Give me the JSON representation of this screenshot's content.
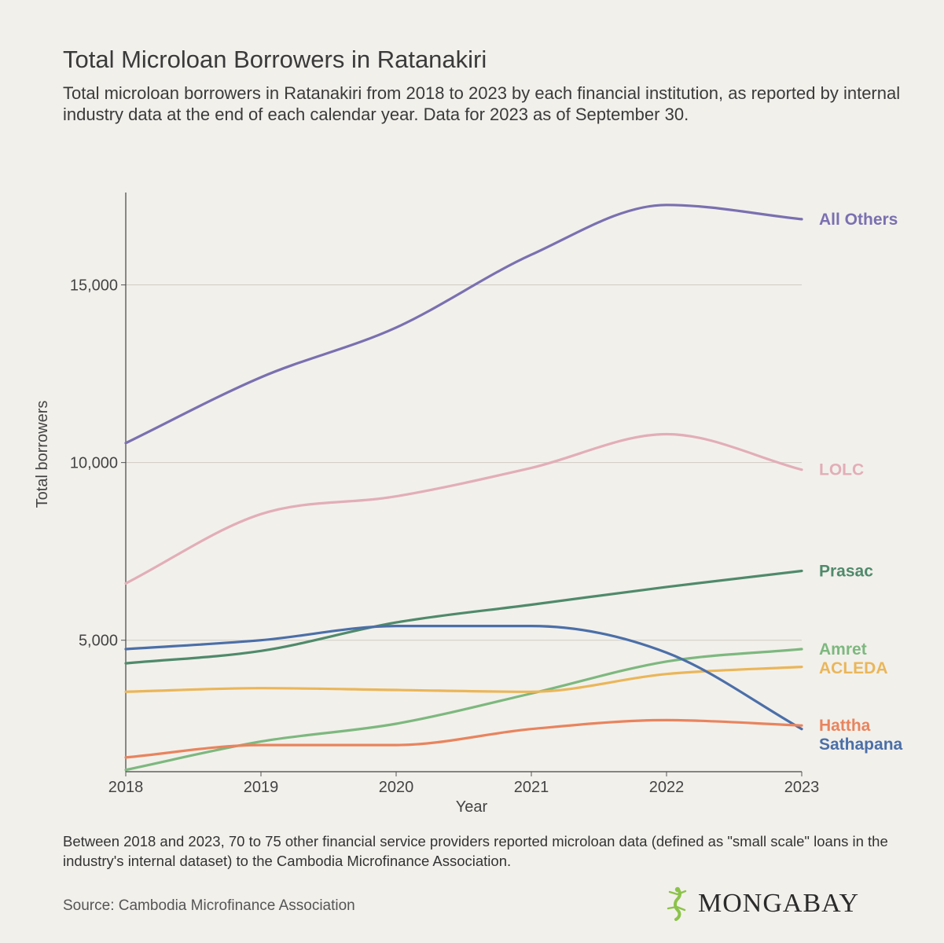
{
  "header": {
    "title": "Total Microloan Borrowers in Ratanakiri",
    "subtitle": "Total microloan borrowers in Ratanakiri from 2018 to 2023 by each financial institution, as reported by internal industry data at the end of each calendar year. Data for 2023 as of September 30."
  },
  "footer": {
    "note": "Between 2018 and 2023, 70 to 75 other financial service providers reported microloan data (defined as \"small scale\" loans in the industry's internal dataset) to the Cambodia Microfinance Association.",
    "source": "Source: Cambodia Microfinance Association",
    "brand": "MONGABAY",
    "brand_icon": "gecko-icon",
    "brand_icon_color": "#8bc34a"
  },
  "chart_data": {
    "type": "line",
    "xlabel": "Year",
    "ylabel": "Total borrowers",
    "x": [
      2018,
      2019,
      2020,
      2021,
      2022,
      2023
    ],
    "xlim": [
      2018,
      2023
    ],
    "ylim": [
      1300,
      17600
    ],
    "yticks": [
      5000,
      10000,
      15000
    ],
    "ytick_labels": [
      "5,000",
      "10,000",
      "15,000"
    ],
    "grid": "horizontal",
    "legend": "labels at line ends (right)",
    "series": [
      {
        "name": "All Others",
        "color": "#7a70b0",
        "values": [
          10550,
          12400,
          13800,
          15850,
          17250,
          16850
        ]
      },
      {
        "name": "LOLC",
        "color": "#e2aeb8",
        "values": [
          6600,
          8550,
          9050,
          9850,
          10800,
          9800
        ]
      },
      {
        "name": "Prasac",
        "color": "#4f8a6b",
        "values": [
          4350,
          4700,
          5500,
          6000,
          6500,
          6950
        ]
      },
      {
        "name": "Amret",
        "color": "#7db87f",
        "values": [
          1350,
          2150,
          2650,
          3500,
          4400,
          4750
        ]
      },
      {
        "name": "ACLEDA",
        "color": "#eab659",
        "values": [
          3550,
          3650,
          3600,
          3550,
          4050,
          4250
        ]
      },
      {
        "name": "Sathapana",
        "color": "#4b6fa8",
        "values": [
          4750,
          5000,
          5400,
          5400,
          4650,
          2500
        ]
      },
      {
        "name": "Hattha",
        "color": "#e8845e",
        "values": [
          1700,
          2050,
          2050,
          2500,
          2750,
          2600
        ]
      }
    ]
  }
}
